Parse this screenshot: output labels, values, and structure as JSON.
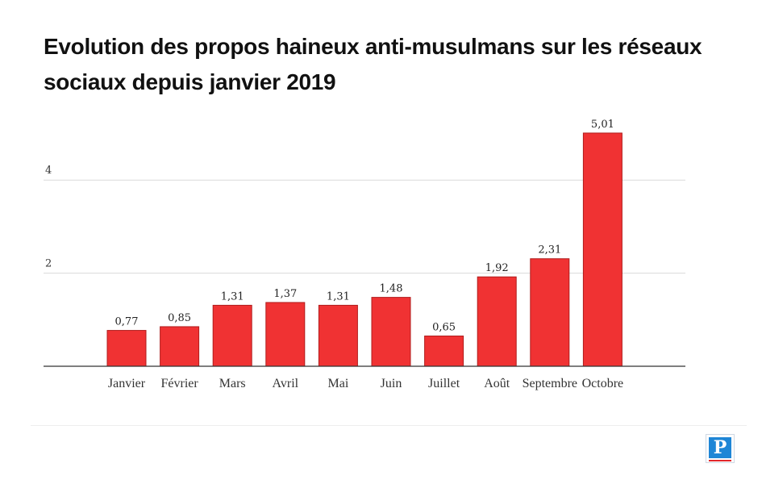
{
  "title": "Evolution des propos haineux anti-musulmans sur les réseaux sociaux depuis janvier 2019",
  "colors": {
    "bar": "#f03233",
    "bar_stroke": "#b01c1c",
    "grid": "#d9d9d9",
    "axis": "#333333"
  },
  "logo": {
    "letter": "P"
  },
  "chart_data": {
    "type": "bar",
    "title": "Evolution des propos haineux anti-musulmans sur les réseaux sociaux depuis janvier 2019",
    "categories": [
      "Janvier",
      "Février",
      "Mars",
      "Avril",
      "Mai",
      "Juin",
      "Juillet",
      "Août",
      "Septembre",
      "Octobre"
    ],
    "values": [
      0.77,
      0.85,
      1.31,
      1.37,
      1.31,
      1.48,
      0.65,
      1.92,
      2.31,
      5.01
    ],
    "value_labels": [
      "0,77",
      "0,85",
      "1,31",
      "1,37",
      "1,31",
      "1,48",
      "0,65",
      "1,92",
      "2,31",
      "5,01"
    ],
    "yticks": [
      2,
      4
    ],
    "ylim": [
      0,
      5.2
    ],
    "grid": true,
    "xlabel": "",
    "ylabel": ""
  }
}
